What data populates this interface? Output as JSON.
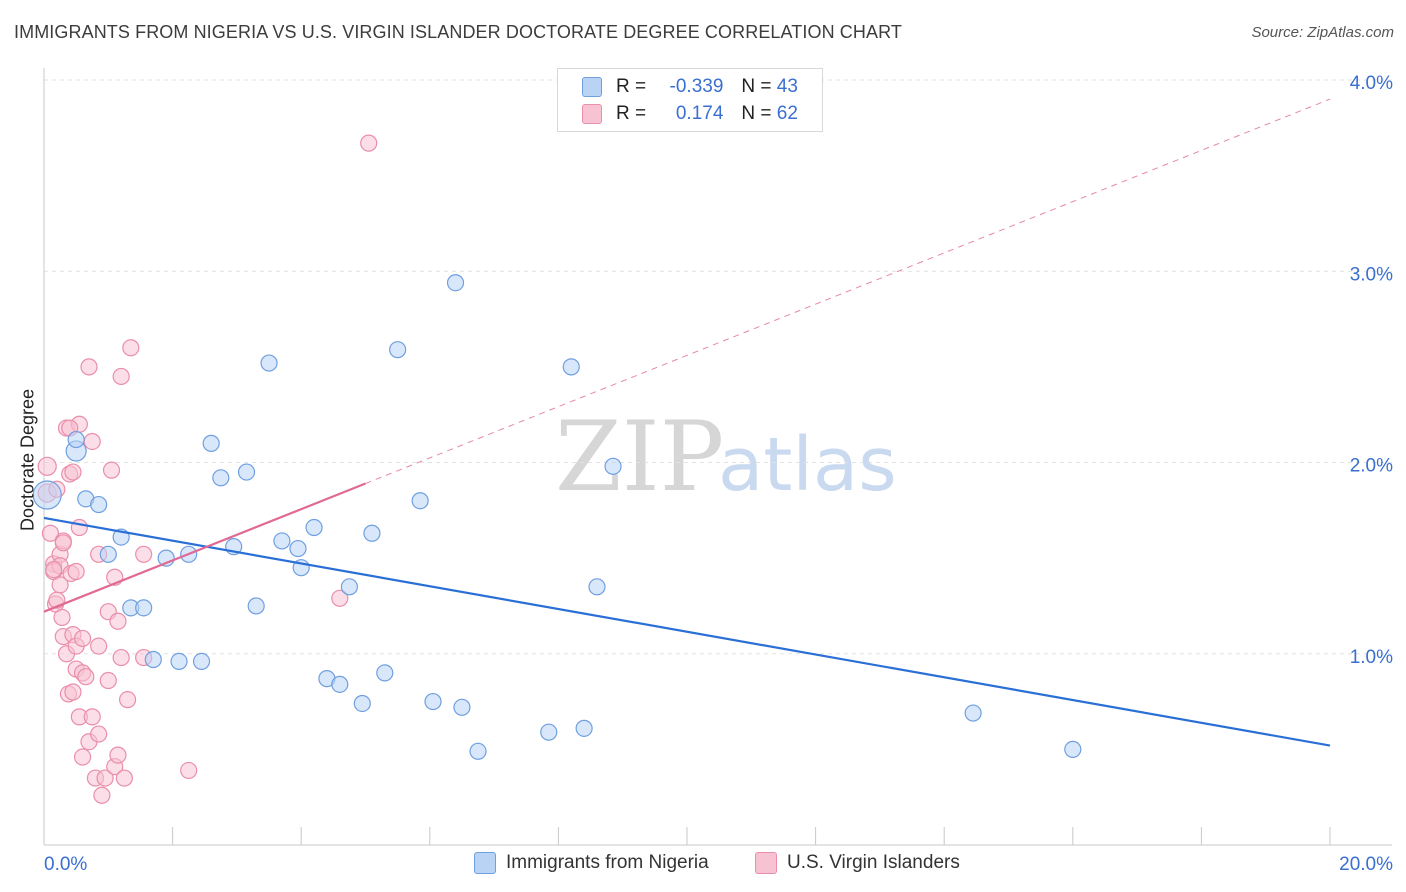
{
  "header": {
    "title": "IMMIGRANTS FROM NIGERIA VS U.S. VIRGIN ISLANDER DOCTORATE DEGREE CORRELATION CHART",
    "source": "Source: ZipAtlas.com"
  },
  "legend": {
    "series1": {
      "r_label": "R =",
      "r_value": "-0.339",
      "n_label": "N =",
      "n_value": "43"
    },
    "series2": {
      "r_label": "R =",
      "r_value": "0.174",
      "n_label": "N =",
      "n_value": "62"
    }
  },
  "bottom_legend": {
    "series1": "Immigrants from Nigeria",
    "series2": "U.S. Virgin Islanders"
  },
  "watermark": {
    "zip": "ZIP",
    "atlas": "atlas"
  },
  "colors": {
    "blue_fill": "#b9d3f5",
    "blue_stroke": "#6f9fe0",
    "blue_line": "#2a6fd6",
    "pink_fill": "#f7c3d3",
    "pink_stroke": "#ea8eaa",
    "pink_line": "#e06a94",
    "tick_text": "#3a6fd0",
    "grid": "#e2e2e2"
  },
  "chart_data": {
    "type": "scatter",
    "title": "IMMIGRANTS FROM NIGERIA VS U.S. VIRGIN ISLANDER DOCTORATE DEGREE CORRELATION CHART",
    "xlabel": "",
    "ylabel": "Doctorate Degree",
    "xlim": [
      0,
      20
    ],
    "ylim": [
      0,
      4
    ],
    "x_tick_labels": [
      "0.0%",
      "20.0%"
    ],
    "y_ticks": [
      1,
      2,
      3,
      4
    ],
    "y_tick_labels": [
      "1.0%",
      "2.0%",
      "3.0%",
      "4.0%"
    ],
    "grid": true,
    "series": [
      {
        "name": "Immigrants from Nigeria",
        "r": -0.339,
        "n": 43,
        "trend": {
          "x0": 0,
          "y0": 1.71,
          "x1": 20,
          "y1": 0.52,
          "dashed_from": null
        },
        "points": [
          {
            "x": 0.05,
            "y": 1.83,
            "s": 14
          },
          {
            "x": 0.5,
            "y": 2.06,
            "s": 10
          },
          {
            "x": 0.5,
            "y": 2.12,
            "s": 8
          },
          {
            "x": 0.65,
            "y": 1.81,
            "s": 8
          },
          {
            "x": 0.85,
            "y": 1.78,
            "s": 8
          },
          {
            "x": 1.0,
            "y": 1.52,
            "s": 8
          },
          {
            "x": 1.2,
            "y": 1.61,
            "s": 8
          },
          {
            "x": 1.35,
            "y": 1.24,
            "s": 8
          },
          {
            "x": 1.55,
            "y": 1.24,
            "s": 8
          },
          {
            "x": 1.7,
            "y": 0.97,
            "s": 8
          },
          {
            "x": 1.9,
            "y": 1.5,
            "s": 8
          },
          {
            "x": 2.1,
            "y": 0.96,
            "s": 8
          },
          {
            "x": 2.25,
            "y": 1.52,
            "s": 8
          },
          {
            "x": 2.45,
            "y": 0.96,
            "s": 8
          },
          {
            "x": 2.6,
            "y": 2.1,
            "s": 8
          },
          {
            "x": 2.75,
            "y": 1.92,
            "s": 8
          },
          {
            "x": 2.95,
            "y": 1.56,
            "s": 8
          },
          {
            "x": 3.15,
            "y": 1.95,
            "s": 8
          },
          {
            "x": 3.3,
            "y": 1.25,
            "s": 8
          },
          {
            "x": 3.5,
            "y": 2.52,
            "s": 8
          },
          {
            "x": 3.7,
            "y": 1.59,
            "s": 8
          },
          {
            "x": 3.95,
            "y": 1.55,
            "s": 8
          },
          {
            "x": 4.0,
            "y": 1.45,
            "s": 8
          },
          {
            "x": 4.2,
            "y": 1.66,
            "s": 8
          },
          {
            "x": 4.4,
            "y": 0.87,
            "s": 8
          },
          {
            "x": 4.6,
            "y": 0.84,
            "s": 8
          },
          {
            "x": 4.75,
            "y": 1.35,
            "s": 8
          },
          {
            "x": 4.95,
            "y": 0.74,
            "s": 8
          },
          {
            "x": 5.1,
            "y": 1.63,
            "s": 8
          },
          {
            "x": 5.3,
            "y": 0.9,
            "s": 8
          },
          {
            "x": 5.5,
            "y": 2.59,
            "s": 8
          },
          {
            "x": 5.85,
            "y": 1.8,
            "s": 8
          },
          {
            "x": 6.05,
            "y": 0.75,
            "s": 8
          },
          {
            "x": 6.4,
            "y": 2.94,
            "s": 8
          },
          {
            "x": 6.5,
            "y": 0.72,
            "s": 8
          },
          {
            "x": 6.75,
            "y": 0.49,
            "s": 8
          },
          {
            "x": 7.85,
            "y": 0.59,
            "s": 8
          },
          {
            "x": 8.2,
            "y": 2.5,
            "s": 8
          },
          {
            "x": 8.4,
            "y": 0.61,
            "s": 8
          },
          {
            "x": 8.6,
            "y": 1.35,
            "s": 8
          },
          {
            "x": 8.85,
            "y": 1.98,
            "s": 8
          },
          {
            "x": 14.45,
            "y": 0.69,
            "s": 8
          },
          {
            "x": 16.0,
            "y": 0.5,
            "s": 8
          }
        ]
      },
      {
        "name": "U.S. Virgin Islanders",
        "r": 0.174,
        "n": 62,
        "trend": {
          "x0": 0,
          "y0": 1.22,
          "x1": 20,
          "y1": 3.9,
          "solid_until_x": 5.0
        },
        "points": [
          {
            "x": 0.05,
            "y": 1.98,
            "s": 9
          },
          {
            "x": 0.05,
            "y": 1.84,
            "s": 9
          },
          {
            "x": 0.1,
            "y": 1.63,
            "s": 8
          },
          {
            "x": 0.15,
            "y": 1.47,
            "s": 8
          },
          {
            "x": 0.15,
            "y": 1.43,
            "s": 8
          },
          {
            "x": 0.18,
            "y": 1.26,
            "s": 8
          },
          {
            "x": 0.2,
            "y": 1.86,
            "s": 8
          },
          {
            "x": 0.25,
            "y": 1.52,
            "s": 8
          },
          {
            "x": 0.25,
            "y": 1.46,
            "s": 8
          },
          {
            "x": 0.25,
            "y": 1.36,
            "s": 8
          },
          {
            "x": 0.28,
            "y": 1.19,
            "s": 8
          },
          {
            "x": 0.3,
            "y": 1.59,
            "s": 8
          },
          {
            "x": 0.3,
            "y": 1.09,
            "s": 8
          },
          {
            "x": 0.35,
            "y": 2.18,
            "s": 8
          },
          {
            "x": 0.35,
            "y": 1.0,
            "s": 8
          },
          {
            "x": 0.38,
            "y": 0.79,
            "s": 8
          },
          {
            "x": 0.4,
            "y": 1.94,
            "s": 8
          },
          {
            "x": 0.42,
            "y": 1.42,
            "s": 8
          },
          {
            "x": 0.45,
            "y": 1.1,
            "s": 8
          },
          {
            "x": 0.45,
            "y": 0.8,
            "s": 8
          },
          {
            "x": 0.5,
            "y": 1.04,
            "s": 8
          },
          {
            "x": 0.5,
            "y": 0.92,
            "s": 8
          },
          {
            "x": 0.55,
            "y": 2.2,
            "s": 8
          },
          {
            "x": 0.55,
            "y": 1.66,
            "s": 8
          },
          {
            "x": 0.55,
            "y": 0.67,
            "s": 8
          },
          {
            "x": 0.6,
            "y": 0.9,
            "s": 8
          },
          {
            "x": 0.6,
            "y": 0.46,
            "s": 8
          },
          {
            "x": 0.65,
            "y": 0.88,
            "s": 8
          },
          {
            "x": 0.7,
            "y": 2.5,
            "s": 8
          },
          {
            "x": 0.7,
            "y": 0.54,
            "s": 8
          },
          {
            "x": 0.75,
            "y": 2.11,
            "s": 8
          },
          {
            "x": 0.75,
            "y": 0.67,
            "s": 8
          },
          {
            "x": 0.8,
            "y": 0.35,
            "s": 8
          },
          {
            "x": 0.85,
            "y": 1.52,
            "s": 8
          },
          {
            "x": 0.85,
            "y": 1.04,
            "s": 8
          },
          {
            "x": 0.85,
            "y": 0.58,
            "s": 8
          },
          {
            "x": 0.9,
            "y": 0.26,
            "s": 8
          },
          {
            "x": 0.95,
            "y": 0.35,
            "s": 8
          },
          {
            "x": 1.0,
            "y": 1.22,
            "s": 8
          },
          {
            "x": 1.0,
            "y": 0.86,
            "s": 8
          },
          {
            "x": 1.05,
            "y": 1.96,
            "s": 8
          },
          {
            "x": 1.1,
            "y": 1.4,
            "s": 8
          },
          {
            "x": 1.1,
            "y": 0.41,
            "s": 8
          },
          {
            "x": 1.15,
            "y": 1.17,
            "s": 8
          },
          {
            "x": 1.15,
            "y": 0.47,
            "s": 8
          },
          {
            "x": 1.2,
            "y": 2.45,
            "s": 8
          },
          {
            "x": 1.2,
            "y": 0.98,
            "s": 8
          },
          {
            "x": 1.25,
            "y": 0.35,
            "s": 8
          },
          {
            "x": 1.3,
            "y": 0.76,
            "s": 8
          },
          {
            "x": 1.35,
            "y": 2.6,
            "s": 8
          },
          {
            "x": 1.55,
            "y": 1.52,
            "s": 8
          },
          {
            "x": 1.55,
            "y": 0.98,
            "s": 8
          },
          {
            "x": 2.25,
            "y": 0.39,
            "s": 8
          },
          {
            "x": 4.6,
            "y": 1.29,
            "s": 8
          },
          {
            "x": 5.05,
            "y": 3.67,
            "s": 8
          },
          {
            "x": 0.15,
            "y": 1.44,
            "s": 8
          },
          {
            "x": 0.2,
            "y": 1.28,
            "s": 8
          },
          {
            "x": 0.3,
            "y": 1.58,
            "s": 8
          },
          {
            "x": 0.45,
            "y": 1.95,
            "s": 8
          },
          {
            "x": 0.5,
            "y": 1.43,
            "s": 8
          },
          {
            "x": 0.6,
            "y": 1.08,
            "s": 8
          },
          {
            "x": 0.4,
            "y": 2.18,
            "s": 8
          }
        ]
      }
    ]
  }
}
